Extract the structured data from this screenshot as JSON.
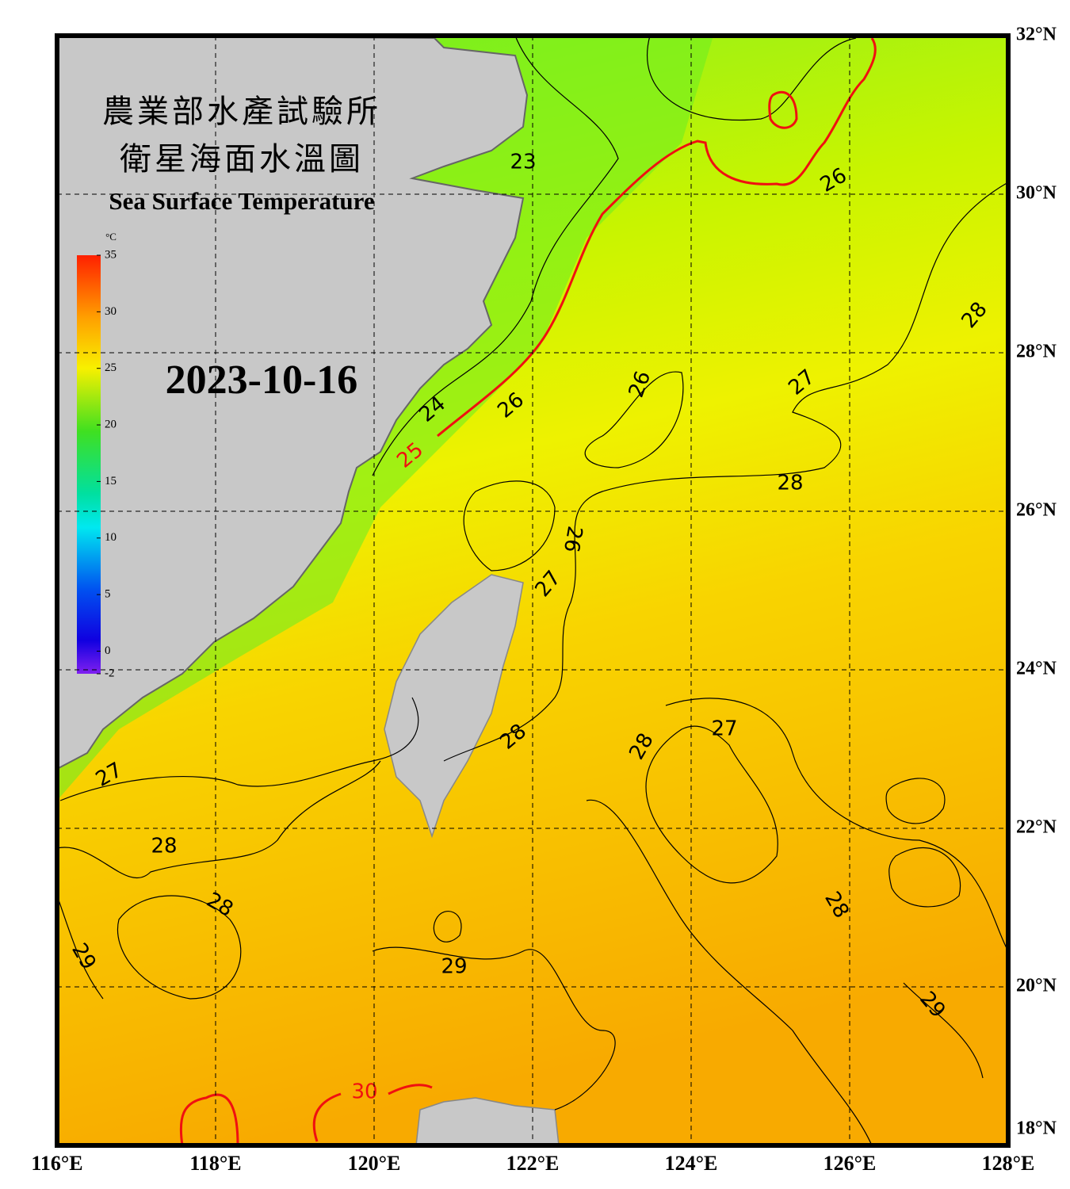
{
  "map": {
    "title_zh": [
      "農業部水產試驗所",
      "衛星海面水溫圖"
    ],
    "title_en": "Sea Surface Temperature",
    "date": "2023-10-16",
    "xlim": [
      116,
      128
    ],
    "xticks": [
      {
        "value": 116,
        "label": "116°E"
      },
      {
        "value": 118,
        "label": "118°E"
      },
      {
        "value": 120,
        "label": "120°E"
      },
      {
        "value": 122,
        "label": "122°E"
      },
      {
        "value": 124,
        "label": "124°E"
      },
      {
        "value": 126,
        "label": "126°E"
      },
      {
        "value": 128,
        "label": "128°E"
      }
    ],
    "ylim": [
      18,
      32
    ],
    "yticks": [
      {
        "value": 32,
        "label": "32°N"
      },
      {
        "value": 30,
        "label": "30°N"
      },
      {
        "value": 28,
        "label": "28°N"
      },
      {
        "value": 26,
        "label": "26°N"
      },
      {
        "value": 24,
        "label": "24°N"
      },
      {
        "value": 22,
        "label": "22°N"
      },
      {
        "value": 20,
        "label": "20°N"
      },
      {
        "value": 18,
        "label": "18°N"
      }
    ],
    "colorbar": {
      "unit": "°C",
      "lim": [
        -2,
        35
      ],
      "ticks": [
        35,
        30,
        25,
        20,
        15,
        10,
        5,
        0,
        -2
      ]
    },
    "contour_labels": [
      "23",
      "26",
      "28",
      "27",
      "26",
      "26",
      "24",
      "25",
      "28",
      "26",
      "27",
      "28",
      "28",
      "27",
      "27",
      "28",
      "28",
      "29",
      "28",
      "29",
      "29",
      "30"
    ]
  }
}
